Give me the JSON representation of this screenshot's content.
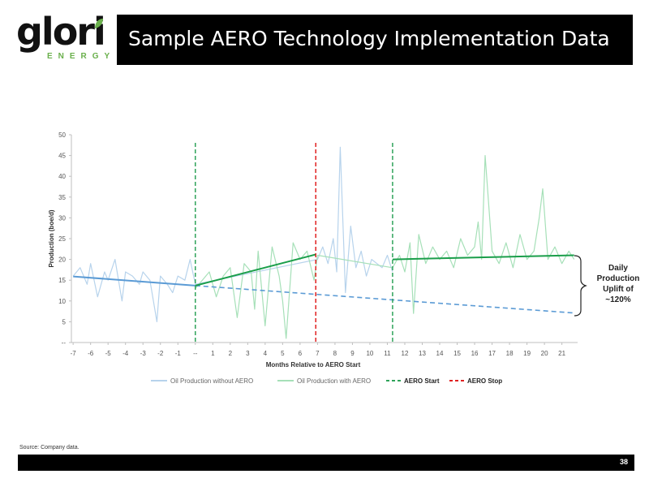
{
  "logo": {
    "word": "glori",
    "sub": "ENERGY"
  },
  "header": {
    "title": "Sample AERO Technology Implementation Data"
  },
  "colors": {
    "without_aero": "#b7d3ec",
    "with_aero": "#a6e0b8",
    "blue_trend": "#5b9bd5",
    "green_trend": "#1a9e4a",
    "aero_start": "#2fa35a",
    "aero_stop": "#e02020",
    "axis": "#bfbfbf"
  },
  "chart_data": {
    "type": "line",
    "xlabel": "Months Relative to AERO Start",
    "ylabel": "Production (boe/d)",
    "xlim": [
      -7.1,
      21.9
    ],
    "ylim": [
      0,
      50
    ],
    "ytick_labels": [
      "--",
      "5",
      "10",
      "15",
      "20",
      "25",
      "30",
      "35",
      "40",
      "45",
      "50"
    ],
    "xtick_labels": [
      "-7",
      "-6",
      "-5",
      "-4",
      "-3",
      "-2",
      "-1",
      "--",
      "1",
      "2",
      "3",
      "4",
      "5",
      "6",
      "7",
      "8",
      "9",
      "10",
      "11",
      "12",
      "13",
      "14",
      "15",
      "16",
      "17",
      "18",
      "19",
      "20",
      "21"
    ],
    "series": [
      {
        "name": "Oil Production without AERO",
        "x": [
          -7,
          -6.6,
          -6.2,
          -6,
          -5.6,
          -5.2,
          -5,
          -4.6,
          -4.2,
          -4,
          -3.6,
          -3.2,
          -3,
          -2.6,
          -2.2,
          -2,
          -1.6,
          -1.3,
          -1,
          -0.6,
          -0.3,
          0,
          7,
          7.3,
          7.6,
          7.9,
          8.1,
          8.3,
          8.6,
          8.9,
          9.2,
          9.5,
          9.8,
          10.1,
          10.4,
          10.7,
          11,
          11.3
        ],
        "y": [
          16,
          18,
          14,
          19,
          11,
          17,
          15,
          20,
          10,
          17,
          16,
          14,
          17,
          15,
          5,
          16,
          14,
          12,
          16,
          15,
          20,
          14,
          20,
          23,
          19,
          25,
          17,
          47,
          12,
          28,
          18,
          22,
          16,
          20,
          19,
          18,
          21,
          17
        ]
      },
      {
        "name": "Oil Production with AERO",
        "x": [
          0,
          0.4,
          0.8,
          1.2,
          1.6,
          2,
          2.4,
          2.8,
          3.2,
          3.4,
          3.6,
          4,
          4.4,
          4.8,
          5,
          5.2,
          5.6,
          6,
          6.4,
          6.8,
          7,
          11.3,
          11.7,
          12,
          12.3,
          12.5,
          12.8,
          13.2,
          13.6,
          14,
          14.4,
          14.8,
          15.2,
          15.6,
          16,
          16.2,
          16.4,
          16.6,
          17,
          17.4,
          17.8,
          18.2,
          18.6,
          19,
          19.4,
          19.7,
          19.9,
          20.2,
          20.6,
          21,
          21.4,
          21.7
        ],
        "y": [
          13,
          15,
          17,
          11,
          16,
          18,
          6,
          19,
          17,
          8,
          22,
          4,
          23,
          16,
          10,
          1,
          24,
          20,
          22,
          15,
          21,
          18,
          21,
          17,
          24,
          7,
          26,
          19,
          23,
          20,
          22,
          18,
          25,
          21,
          23,
          29,
          20,
          45,
          22,
          19,
          24,
          18,
          26,
          20,
          22,
          30,
          37,
          20,
          23,
          19,
          22,
          20
        ]
      },
      {
        "name": "Blue trend without AERO",
        "x": [
          -7,
          0
        ],
        "y": [
          15.9,
          13.7
        ]
      },
      {
        "name": "Blue trend projected",
        "x": [
          0,
          21.7
        ],
        "y": [
          13.7,
          7.1
        ]
      },
      {
        "name": "Green trend with AERO",
        "x": [
          0,
          6.9
        ],
        "y": [
          13.7,
          21.2
        ]
      },
      {
        "name": "Green trend after AERO Stop",
        "x": [
          11.3,
          21.7
        ],
        "y": [
          20.0,
          21.0
        ]
      }
    ],
    "vlines": [
      {
        "name": "AERO Start",
        "x": 0
      },
      {
        "name": "AERO Stop",
        "x": 6.9
      },
      {
        "name": "AERO Start",
        "x": 11.3
      }
    ],
    "legend": [
      {
        "label": "Oil Production without AERO",
        "style": "solid-light-blue"
      },
      {
        "label": "Oil Production with AERO",
        "style": "solid-light-green"
      },
      {
        "label": "AERO Start",
        "style": "dashed-green"
      },
      {
        "label": "AERO Stop",
        "style": "dashed-red"
      }
    ],
    "legend_position": "bottom",
    "grid": false
  },
  "annotation": {
    "lines": [
      "Daily",
      "Production",
      "Uplift of",
      "~120%"
    ]
  },
  "footer": {
    "source": "Source: Company data.",
    "page": "38"
  }
}
